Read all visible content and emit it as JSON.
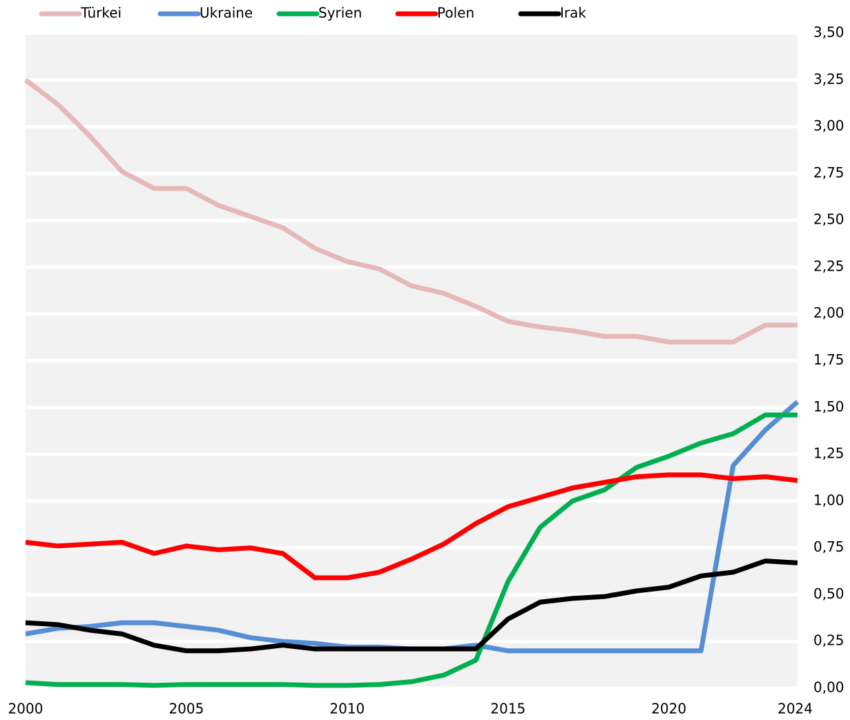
{
  "chart_data": {
    "type": "line",
    "x": [
      2000,
      2001,
      2002,
      2003,
      2004,
      2005,
      2006,
      2007,
      2008,
      2009,
      2010,
      2011,
      2012,
      2013,
      2014,
      2015,
      2016,
      2017,
      2018,
      2019,
      2020,
      2021,
      2022,
      2023,
      2024
    ],
    "xlim": [
      2000,
      2024
    ],
    "xticks": [
      2000,
      2005,
      2010,
      2015,
      2020,
      2024
    ],
    "ylim": [
      0,
      3.5
    ],
    "yticks": [
      {
        "value": 0,
        "label": "0,00"
      },
      {
        "value": 0.25,
        "label": "0,25"
      },
      {
        "value": 0.5,
        "label": "0,50"
      },
      {
        "value": 0.75,
        "label": "0,75"
      },
      {
        "value": 1,
        "label": "1,00"
      },
      {
        "value": 1.25,
        "label": "1,25"
      },
      {
        "value": 1.5,
        "label": "1,50"
      },
      {
        "value": 1.75,
        "label": "1,75"
      },
      {
        "value": 2,
        "label": "2,00"
      },
      {
        "value": 2.25,
        "label": "2,25"
      },
      {
        "value": 2.5,
        "label": "2,50"
      },
      {
        "value": 2.75,
        "label": "2,75"
      },
      {
        "value": 3,
        "label": "3,00"
      },
      {
        "value": 3.25,
        "label": "3,25"
      },
      {
        "value": 3.5,
        "label": "3,50"
      }
    ],
    "grid": true,
    "legend": "top",
    "series": [
      {
        "name": "Türkei",
        "color": "#e6b9b8",
        "values": [
          3.25,
          3.12,
          2.95,
          2.76,
          2.67,
          2.67,
          2.58,
          2.52,
          2.46,
          2.35,
          2.28,
          2.24,
          2.15,
          2.11,
          2.04,
          1.96,
          1.93,
          1.91,
          1.88,
          1.88,
          1.85,
          1.85,
          1.85,
          1.94,
          1.94
        ]
      },
      {
        "name": "Ukraine",
        "color": "#558ed5",
        "values": [
          0.29,
          0.32,
          0.33,
          0.35,
          0.35,
          0.33,
          0.31,
          0.27,
          0.25,
          0.24,
          0.22,
          0.22,
          0.21,
          0.21,
          0.23,
          0.2,
          0.2,
          0.2,
          0.2,
          0.2,
          0.2,
          0.2,
          1.19,
          1.38,
          1.53
        ]
      },
      {
        "name": "Syrien",
        "color": "#00b050",
        "values": [
          0.03,
          0.02,
          0.02,
          0.02,
          0.015,
          0.02,
          0.02,
          0.02,
          0.02,
          0.015,
          0.015,
          0.02,
          0.035,
          0.07,
          0.15,
          0.57,
          0.86,
          1.0,
          1.06,
          1.18,
          1.24,
          1.31,
          1.36,
          1.46,
          1.46
        ]
      },
      {
        "name": "Polen",
        "color": "#ff0000",
        "values": [
          0.78,
          0.76,
          0.77,
          0.78,
          0.72,
          0.76,
          0.74,
          0.75,
          0.72,
          0.59,
          0.59,
          0.62,
          0.69,
          0.77,
          0.88,
          0.97,
          1.02,
          1.07,
          1.1,
          1.13,
          1.14,
          1.14,
          1.12,
          1.13,
          1.11
        ]
      },
      {
        "name": "Irak",
        "color": "#000000",
        "values": [
          0.35,
          0.34,
          0.31,
          0.29,
          0.23,
          0.2,
          0.2,
          0.21,
          0.23,
          0.21,
          0.21,
          0.21,
          0.21,
          0.21,
          0.21,
          0.37,
          0.46,
          0.48,
          0.49,
          0.52,
          0.54,
          0.6,
          0.62,
          0.68,
          0.67
        ]
      }
    ]
  }
}
